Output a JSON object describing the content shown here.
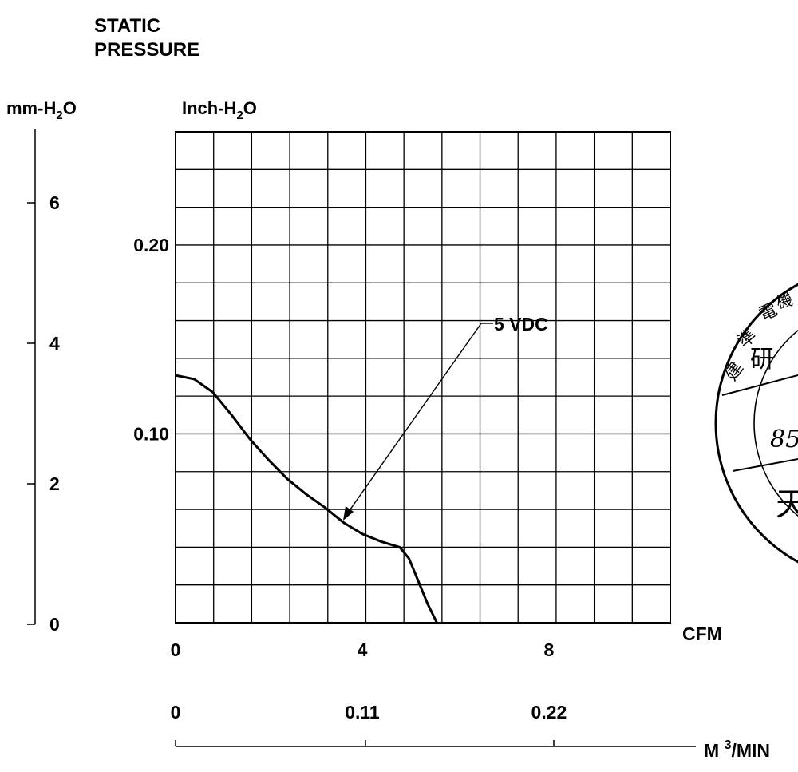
{
  "chart_data": {
    "type": "line",
    "title": "STATIC\nPRESSURE",
    "title_lines": [
      "STATIC",
      "PRESSURE"
    ],
    "xlabel": "CFM",
    "xlabel_secondary": "M 3/MIN",
    "ylabel": "Inch-H2O",
    "ylabel_secondary": "mm-H2O",
    "x_ticks": [
      "0",
      "4",
      "8"
    ],
    "x_ticks_secondary": [
      "0",
      "0.11",
      "0.22"
    ],
    "y_ticks": [
      "0.20",
      "0.10"
    ],
    "y_ticks_secondary": [
      "0",
      "2",
      "4",
      "6"
    ],
    "xlim": [
      0,
      10.6
    ],
    "ylim": [
      0,
      0.26
    ],
    "grid": true,
    "series": [
      {
        "name": "5 VDC",
        "x": [
          0,
          0.4,
          0.8,
          1.2,
          1.6,
          2.0,
          2.4,
          2.8,
          3.2,
          3.6,
          4.0,
          4.4,
          4.8,
          5.0,
          5.2,
          5.4,
          5.6
        ],
        "y": [
          0.131,
          0.129,
          0.122,
          0.11,
          0.097,
          0.086,
          0.076,
          0.068,
          0.061,
          0.053,
          0.047,
          0.043,
          0.04,
          0.034,
          0.022,
          0.01,
          0.0
        ]
      }
    ],
    "annotation": "5 VDC"
  }
}
